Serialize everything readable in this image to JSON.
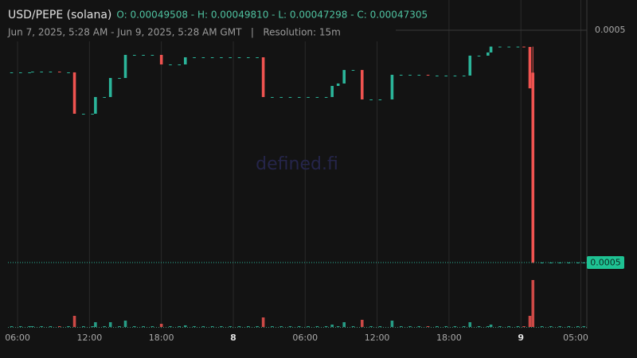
{
  "chart_data": {
    "type": "candlestick",
    "title": "USD/PEPE (solana)",
    "legend_ohlc": "O: 0.00049508 - H: 0.00049810 - L: 0.00047298 - C: 0.00047305",
    "subtitle": "Jun 7, 2025, 5:28 AM - Jun 9, 2025, 5:28 AM GMT   |   Resolution: 15m",
    "watermark": "defined.fi",
    "up_color": "#2bb59a",
    "down_color": "#ef5350",
    "grid": true,
    "xlim": [
      5.2,
      53.5
    ],
    "xticks": [
      {
        "value": 6,
        "label": "06:00"
      },
      {
        "value": 12,
        "label": "12:00"
      },
      {
        "value": 18,
        "label": "18:00"
      },
      {
        "value": 24,
        "label": "8"
      },
      {
        "value": 30,
        "label": "06:00"
      },
      {
        "value": 36,
        "label": "12:00"
      },
      {
        "value": 42,
        "label": "18:00"
      },
      {
        "value": 48,
        "label": "9"
      },
      {
        "value": 53,
        "label": "05:00"
      }
    ],
    "ylim": [
      0.00047,
      0.0005
    ],
    "yticks": [
      0.0005
    ],
    "last_price": {
      "value": 0.00047305,
      "label": "0.0005"
    },
    "vlim": [
      0,
      60
    ],
    "x": [
      5.5,
      6.25,
      7.0,
      7.25,
      8.0,
      8.75,
      9.5,
      10.25,
      10.75,
      11.5,
      12.25,
      12.5,
      13.25,
      13.75,
      14.5,
      15.0,
      15.75,
      16.5,
      17.25,
      18.0,
      18.75,
      19.5,
      20.0,
      20.75,
      21.5,
      22.25,
      23.0,
      23.75,
      24.5,
      25.25,
      26.0,
      26.5,
      27.25,
      28.0,
      28.75,
      29.5,
      30.25,
      31.0,
      31.75,
      32.25,
      32.75,
      33.25,
      34.0,
      34.75,
      35.5,
      36.25,
      37.25,
      38.0,
      38.75,
      39.5,
      40.25,
      41.0,
      41.75,
      42.5,
      43.25,
      43.75,
      44.5,
      45.25,
      45.5,
      46.25,
      47.0,
      47.75,
      48.25,
      48.75,
      49.0,
      49.75,
      50.5,
      51.25,
      52.0,
      52.75,
      53.25
    ],
    "open": [
      0.00049511,
      0.00049511,
      0.00049511,
      0.00049511,
      0.0004952,
      0.0004952,
      0.0004952,
      0.00049511,
      0.00049511,
      0.00049031,
      0.00049031,
      0.00049031,
      0.00049225,
      0.00049225,
      0.00049446,
      0.00049446,
      0.00049714,
      0.00049714,
      0.00049714,
      0.00049714,
      0.00049603,
      0.00049603,
      0.00049603,
      0.00049686,
      0.00049686,
      0.00049686,
      0.00049686,
      0.00049686,
      0.00049686,
      0.00049686,
      0.00049686,
      0.00049686,
      0.00049225,
      0.00049225,
      0.00049225,
      0.00049225,
      0.00049225,
      0.00049225,
      0.00049225,
      0.00049225,
      0.00049354,
      0.00049382,
      0.00049539,
      0.00049539,
      0.00049197,
      0.00049197,
      0.00049197,
      0.00049483,
      0.00049483,
      0.00049483,
      0.00049483,
      0.00049474,
      0.00049474,
      0.00049474,
      0.00049474,
      0.00049474,
      0.00049705,
      0.00049705,
      0.00049742,
      0.0004981,
      0.0004981,
      0.0004981,
      0.0004981,
      0.00049806,
      0.00049508,
      0.00047305,
      0.00047305,
      0.00047305,
      0.00047305,
      0.00047305,
      0.00047305
    ],
    "high": [
      0.00049511,
      0.00049511,
      0.00049511,
      0.0004952,
      0.0004952,
      0.0004952,
      0.0004952,
      0.00049511,
      0.00049511,
      0.00049031,
      0.00049031,
      0.00049225,
      0.00049225,
      0.00049446,
      0.00049446,
      0.00049714,
      0.00049714,
      0.00049714,
      0.00049714,
      0.00049714,
      0.00049603,
      0.00049603,
      0.00049686,
      0.00049686,
      0.00049686,
      0.00049686,
      0.00049686,
      0.00049686,
      0.00049686,
      0.00049686,
      0.00049686,
      0.00049686,
      0.00049225,
      0.00049225,
      0.00049225,
      0.00049225,
      0.00049225,
      0.00049225,
      0.00049225,
      0.00049354,
      0.00049382,
      0.00049539,
      0.00049539,
      0.00049539,
      0.00049197,
      0.00049197,
      0.00049483,
      0.00049483,
      0.00049483,
      0.00049483,
      0.00049483,
      0.00049474,
      0.00049474,
      0.00049474,
      0.00049474,
      0.00049705,
      0.00049705,
      0.00049742,
      0.0004981,
      0.0004981,
      0.0004981,
      0.0004981,
      0.0004981,
      0.00049806,
      0.0004981,
      0.00047305,
      0.00047305,
      0.00047305,
      0.00047305,
      0.00047305,
      0.00047305
    ],
    "low": [
      0.00049511,
      0.00049511,
      0.00049511,
      0.00049511,
      0.0004952,
      0.0004952,
      0.00049511,
      0.00049511,
      0.00049031,
      0.00049031,
      0.00049031,
      0.00049031,
      0.00049225,
      0.00049225,
      0.00049446,
      0.00049446,
      0.00049714,
      0.00049714,
      0.00049714,
      0.00049603,
      0.00049603,
      0.00049603,
      0.00049603,
      0.00049686,
      0.00049686,
      0.00049686,
      0.00049686,
      0.00049686,
      0.00049686,
      0.00049686,
      0.00049686,
      0.00049225,
      0.00049225,
      0.00049225,
      0.00049225,
      0.00049225,
      0.00049225,
      0.00049225,
      0.00049225,
      0.00049225,
      0.00049354,
      0.00049382,
      0.00049539,
      0.00049197,
      0.00049197,
      0.00049197,
      0.00049197,
      0.00049483,
      0.00049483,
      0.00049483,
      0.00049474,
      0.00049474,
      0.00049474,
      0.00049474,
      0.00049474,
      0.00049474,
      0.00049705,
      0.00049705,
      0.00049742,
      0.0004981,
      0.0004981,
      0.0004981,
      0.00049806,
      0.00049326,
      0.00047298,
      0.00047305,
      0.00047305,
      0.00047305,
      0.00047305,
      0.00047305,
      0.00047305
    ],
    "close": [
      0.00049511,
      0.00049511,
      0.00049511,
      0.0004952,
      0.0004952,
      0.0004952,
      0.00049511,
      0.00049511,
      0.00049031,
      0.00049031,
      0.00049031,
      0.00049225,
      0.00049225,
      0.00049446,
      0.00049446,
      0.00049714,
      0.00049714,
      0.00049714,
      0.00049714,
      0.00049603,
      0.00049603,
      0.00049603,
      0.00049686,
      0.00049686,
      0.00049686,
      0.00049686,
      0.00049686,
      0.00049686,
      0.00049686,
      0.00049686,
      0.00049686,
      0.00049225,
      0.00049225,
      0.00049225,
      0.00049225,
      0.00049225,
      0.00049225,
      0.00049225,
      0.00049225,
      0.00049354,
      0.00049382,
      0.00049539,
      0.00049539,
      0.00049197,
      0.00049197,
      0.00049197,
      0.00049483,
      0.00049483,
      0.00049483,
      0.00049483,
      0.00049474,
      0.00049474,
      0.00049474,
      0.00049474,
      0.00049474,
      0.00049705,
      0.00049705,
      0.00049742,
      0.0004981,
      0.0004981,
      0.0004981,
      0.0004981,
      0.00049806,
      0.00049326,
      0.00047305,
      0.00047305,
      0.00047305,
      0.00047305,
      0.00047305,
      0.00047305,
      0.00047305
    ],
    "volume": [
      1,
      1,
      1,
      1,
      1,
      1,
      1,
      1,
      14,
      1,
      1,
      6,
      1,
      6,
      1,
      8,
      1,
      1,
      1,
      4,
      1,
      1,
      2,
      1,
      1,
      1,
      1,
      1,
      1,
      1,
      1,
      12,
      1,
      1,
      1,
      1,
      1,
      1,
      1,
      3,
      1,
      6,
      1,
      9,
      1,
      1,
      8,
      1,
      1,
      1,
      1,
      1,
      1,
      1,
      1,
      6,
      1,
      1,
      3,
      1,
      1,
      1,
      1,
      14,
      59,
      1,
      1,
      1,
      1,
      1,
      1
    ]
  }
}
